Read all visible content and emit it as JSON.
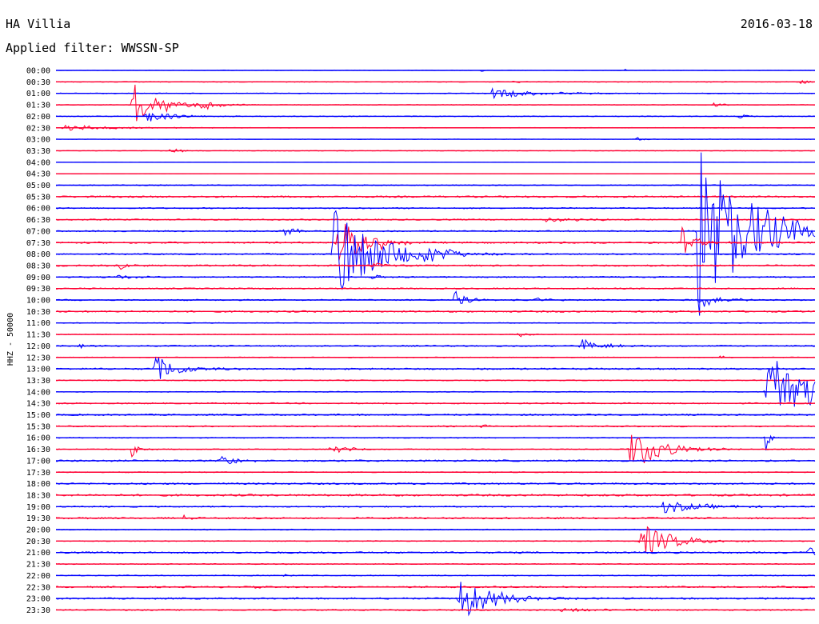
{
  "header": {
    "station": "HA Villia",
    "date": "2016-03-18",
    "filter_label": "Applied filter: WWSSN-SP"
  },
  "chart_data": {
    "type": "line",
    "title": "HA Villia",
    "subtitle": "Applied filter: WWSSN-SP",
    "ylabel": "HHZ - 50000",
    "xlabel": "",
    "grid": false,
    "legend": "none",
    "series_colors": [
      "#0000ff",
      "#ff0033"
    ],
    "rows": [
      "00:00",
      "00:30",
      "01:00",
      "01:30",
      "02:00",
      "02:30",
      "03:00",
      "03:30",
      "04:00",
      "04:30",
      "05:00",
      "05:30",
      "06:00",
      "06:30",
      "07:00",
      "07:30",
      "08:00",
      "08:30",
      "09:00",
      "09:30",
      "10:00",
      "10:30",
      "11:00",
      "11:30",
      "12:00",
      "12:30",
      "13:00",
      "13:30",
      "14:00",
      "14:30",
      "15:00",
      "15:30",
      "16:00",
      "16:30",
      "17:00",
      "17:30",
      "18:00",
      "18:30",
      "19:00",
      "19:30",
      "20:00",
      "20:30",
      "21:00",
      "21:30",
      "22:00",
      "22:30",
      "23:00",
      "23:30"
    ],
    "noise": [
      0.2,
      0.5,
      0.5,
      0.4,
      0.5,
      0.4,
      0.3,
      0.4,
      0.2,
      0.2,
      0.6,
      1.0,
      0.8,
      0.8,
      0.8,
      1.0,
      0.8,
      1.0,
      0.8,
      0.8,
      0.8,
      1.0,
      0.5,
      0.5,
      0.8,
      0.5,
      1.0,
      0.6,
      0.5,
      0.8,
      1.0,
      0.8,
      0.6,
      0.6,
      1.0,
      0.6,
      1.0,
      1.2,
      0.8,
      1.0,
      0.6,
      0.6,
      1.0,
      0.6,
      0.6,
      1.0,
      1.0,
      0.8
    ],
    "events": [
      {
        "row": 0,
        "t": 0.22,
        "amp": 2,
        "dur": 0.004
      },
      {
        "row": 0,
        "t": 0.56,
        "amp": 2,
        "dur": 0.004
      },
      {
        "row": 0,
        "t": 0.75,
        "amp": 2,
        "dur": 0.004
      },
      {
        "row": 1,
        "t": 0.6,
        "amp": 3,
        "dur": 0.01
      },
      {
        "row": 1,
        "t": 0.98,
        "amp": 3,
        "dur": 0.015
      },
      {
        "row": 2,
        "t": 0.575,
        "amp": 6,
        "dur": 0.06
      },
      {
        "row": 3,
        "t": 0.1,
        "amp": 30,
        "dur": 0.03
      },
      {
        "row": 3,
        "t": 0.143,
        "amp": 6,
        "dur": 0.02
      },
      {
        "row": 3,
        "t": 0.19,
        "amp": 7,
        "dur": 0.025
      },
      {
        "row": 3,
        "t": 0.865,
        "amp": 4,
        "dur": 0.01
      },
      {
        "row": 4,
        "t": 0.115,
        "amp": 10,
        "dur": 0.03
      },
      {
        "row": 4,
        "t": 0.9,
        "amp": 3,
        "dur": 0.01
      },
      {
        "row": 5,
        "t": 0.01,
        "amp": 4,
        "dur": 0.06
      },
      {
        "row": 6,
        "t": 0.765,
        "amp": 4,
        "dur": 0.008
      },
      {
        "row": 7,
        "t": 0.15,
        "amp": 4,
        "dur": 0.015
      },
      {
        "row": 13,
        "t": 0.645,
        "amp": 3,
        "dur": 0.05
      },
      {
        "row": 14,
        "t": 0.3,
        "amp": 7,
        "dur": 0.015
      },
      {
        "row": 14,
        "t": 0.845,
        "amp": 120,
        "dur": 0.06
      },
      {
        "row": 14,
        "t": 0.925,
        "amp": 9,
        "dur": 0.025
      },
      {
        "row": 14,
        "t": 0.95,
        "amp": 5,
        "dur": 0.02
      },
      {
        "row": 15,
        "t": 0.37,
        "amp": 34,
        "dur": 0.03
      },
      {
        "row": 15,
        "t": 0.42,
        "amp": 12,
        "dur": 0.02
      },
      {
        "row": 15,
        "t": 0.825,
        "amp": 26,
        "dur": 0.015
      },
      {
        "row": 16,
        "t": 0.365,
        "amp": 68,
        "dur": 0.05
      },
      {
        "row": 16,
        "t": 0.485,
        "amp": 13,
        "dur": 0.025
      },
      {
        "row": 17,
        "t": 0.085,
        "amp": 5,
        "dur": 0.012
      },
      {
        "row": 17,
        "t": 0.415,
        "amp": 5,
        "dur": 0.015
      },
      {
        "row": 18,
        "t": 0.08,
        "amp": 4,
        "dur": 0.02
      },
      {
        "row": 18,
        "t": 0.415,
        "amp": 4,
        "dur": 0.012
      },
      {
        "row": 20,
        "t": 0.525,
        "amp": 12,
        "dur": 0.015
      },
      {
        "row": 20,
        "t": 0.63,
        "amp": 4,
        "dur": 0.015
      },
      {
        "row": 20,
        "t": 0.845,
        "amp": 12,
        "dur": 0.025
      },
      {
        "row": 23,
        "t": 0.61,
        "amp": 3,
        "dur": 0.012
      },
      {
        "row": 24,
        "t": 0.03,
        "amp": 3,
        "dur": 0.012
      },
      {
        "row": 24,
        "t": 0.69,
        "amp": 9,
        "dur": 0.03
      },
      {
        "row": 25,
        "t": 0.875,
        "amp": 4,
        "dur": 0.006
      },
      {
        "row": 26,
        "t": 0.13,
        "amp": 18,
        "dur": 0.03
      },
      {
        "row": 28,
        "t": 0.935,
        "amp": 72,
        "dur": 0.04
      },
      {
        "row": 31,
        "t": 0.56,
        "amp": 3,
        "dur": 0.012
      },
      {
        "row": 32,
        "t": 0.935,
        "amp": 20,
        "dur": 0.006
      },
      {
        "row": 33,
        "t": 0.1,
        "amp": 9,
        "dur": 0.012
      },
      {
        "row": 33,
        "t": 0.36,
        "amp": 8,
        "dur": 0.02
      },
      {
        "row": 33,
        "t": 0.755,
        "amp": 28,
        "dur": 0.04
      },
      {
        "row": 34,
        "t": 0.215,
        "amp": 9,
        "dur": 0.02
      },
      {
        "row": 38,
        "t": 0.8,
        "amp": 8,
        "dur": 0.05
      },
      {
        "row": 39,
        "t": 0.165,
        "amp": 4,
        "dur": 0.012
      },
      {
        "row": 41,
        "t": 0.77,
        "amp": 22,
        "dur": 0.04
      },
      {
        "row": 42,
        "t": 0.99,
        "amp": 9,
        "dur": 0.015
      },
      {
        "row": 44,
        "t": 0.3,
        "amp": 3,
        "dur": 0.006
      },
      {
        "row": 45,
        "t": 0.26,
        "amp": 3,
        "dur": 0.006
      },
      {
        "row": 46,
        "t": 0.53,
        "amp": 30,
        "dur": 0.04
      },
      {
        "row": 47,
        "t": 0.665,
        "amp": 3,
        "dur": 0.06
      }
    ]
  }
}
